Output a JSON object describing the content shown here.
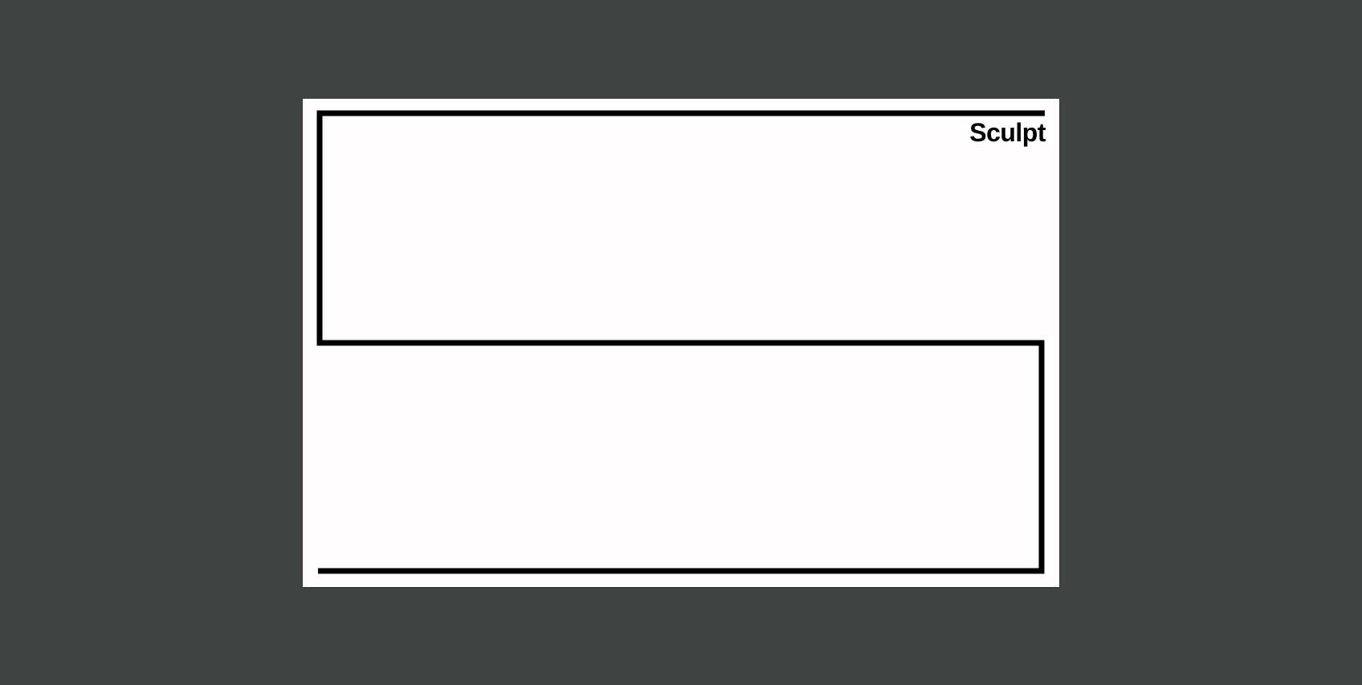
{
  "brand": {
    "wordmark": "Sculpt"
  },
  "colors": {
    "backdrop": "#404443",
    "card": "#fffdfd",
    "ink": "#000000"
  }
}
